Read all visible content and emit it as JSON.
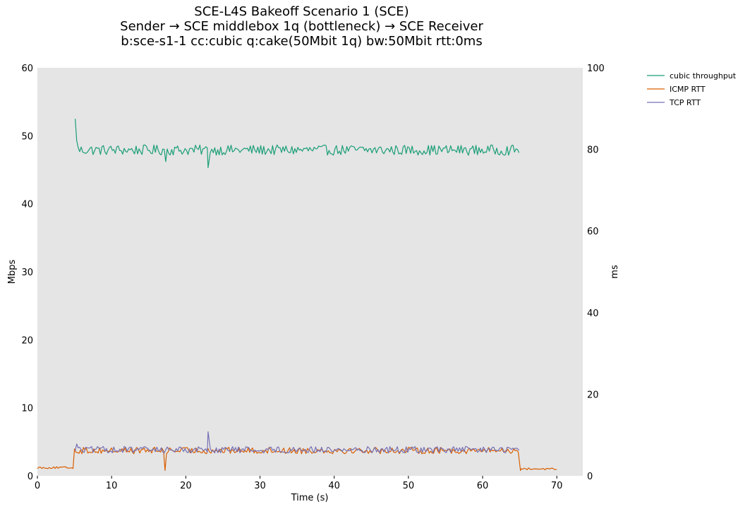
{
  "chart_data": {
    "type": "line",
    "title_lines": [
      "SCE-L4S Bakeoff Scenario 1 (SCE)",
      "Sender → SCE middlebox 1q (bottleneck) → SCE Receiver",
      "b:sce-s1-1 cc:cubic q:cake(50Mbit 1q) bw:50Mbit rtt:0ms"
    ],
    "xlabel": "Time (s)",
    "ylabel_left": "Mbps",
    "ylabel_right": "ms",
    "xlim": [
      0,
      73.5
    ],
    "ylim_left": [
      0,
      60
    ],
    "ylim_right": [
      0,
      100
    ],
    "x_ticks": [
      0,
      10,
      20,
      30,
      40,
      50,
      60,
      70
    ],
    "y_ticks_left": [
      0,
      10,
      20,
      30,
      40,
      50,
      60
    ],
    "y_ticks_right": [
      0,
      20,
      40,
      60,
      80,
      100
    ],
    "grid": false,
    "legend_position": "outside-top-right",
    "series": [
      {
        "name": "cubic throughput",
        "axis": "left",
        "color": "#1b9e77",
        "start": 5.1,
        "end": 65.0,
        "baseline": 47.9,
        "amplitude": 0.75,
        "spikes": [
          [
            5.1,
            52.5
          ],
          [
            5.3,
            49.3
          ],
          [
            17.3,
            46.2
          ],
          [
            23.0,
            45.3
          ]
        ]
      },
      {
        "name": "ICMP RTT",
        "axis": "right",
        "color": "#d95f02",
        "idle_level": 2.0,
        "idle_end": 5.0,
        "start": 5.0,
        "end": 65.0,
        "baseline": 6.2,
        "amplitude": 0.8,
        "tail_level": 1.7,
        "tail_end": 70.0,
        "spikes": [
          [
            17.2,
            1.3
          ],
          [
            65.1,
            1.3
          ]
        ]
      },
      {
        "name": "TCP RTT",
        "axis": "right",
        "color": "#7570b3",
        "start": 5.1,
        "end": 65.0,
        "baseline": 6.4,
        "amplitude": 0.8,
        "spikes": [
          [
            5.3,
            7.8
          ],
          [
            23.0,
            10.8
          ]
        ]
      }
    ]
  }
}
